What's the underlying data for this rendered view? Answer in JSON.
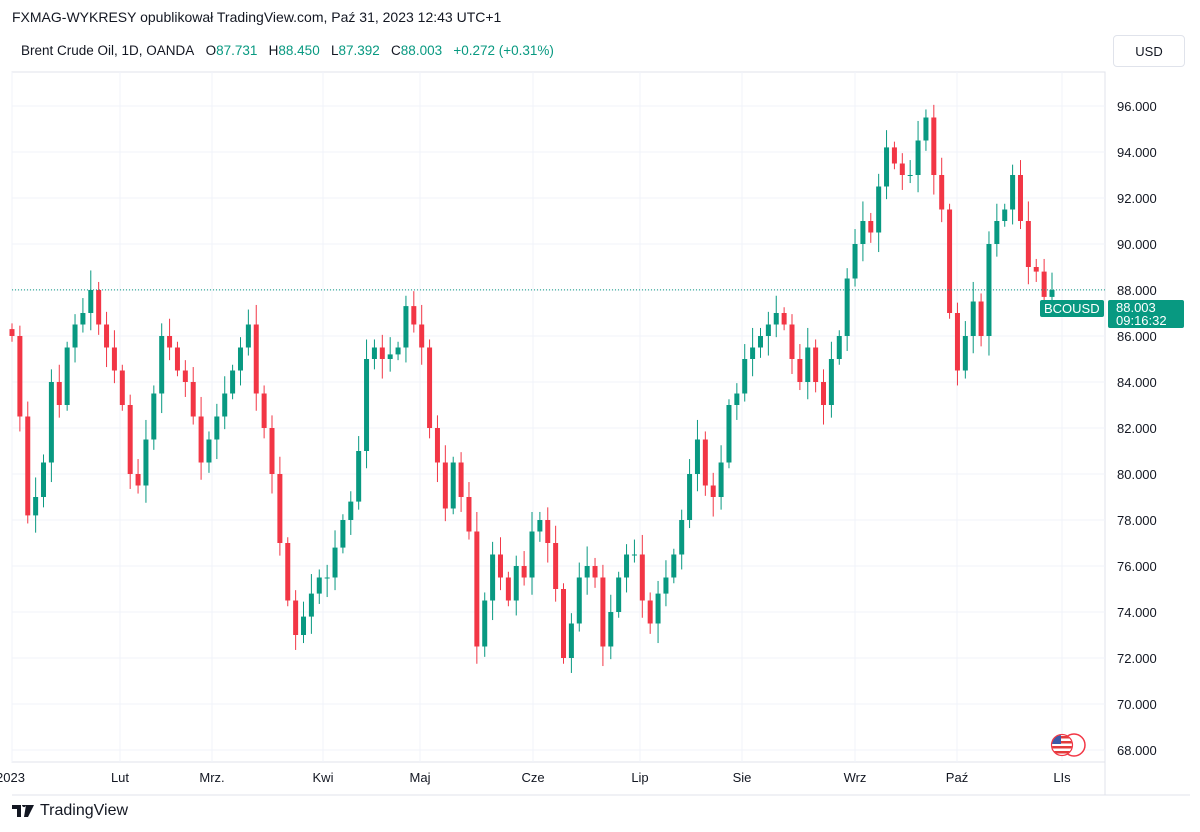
{
  "header": {
    "published": "FXMAG-WYKRESY opublikował TradingView.com, Paź 31, 2023 12:43 UTC+1",
    "symbol": "Brent Crude Oil, 1D, OANDA",
    "o_label": "O",
    "o": "87.731",
    "h_label": "H",
    "h": "88.450",
    "l_label": "L",
    "l": "87.392",
    "c_label": "C",
    "c": "88.003",
    "change": "+0.272 (+0.31%)",
    "currency": "USD"
  },
  "last_price": {
    "symbol": "BCOUSD",
    "price": "88.003",
    "countdown": "09:16:32"
  },
  "footer": {
    "brand": "TradingView"
  },
  "colors": {
    "up": "#089981",
    "down": "#f23645",
    "grid": "#f0f3fa",
    "text": "#131722"
  },
  "icons": {
    "flags": "us-flag-event-icon",
    "logo": "tradingview-logo-icon"
  },
  "chart_data": {
    "type": "candlestick",
    "title": "Brent Crude Oil, 1D, OANDA",
    "ylim": [
      67,
      97
    ],
    "yticks": [
      "96.000",
      "94.000",
      "92.000",
      "90.000",
      "88.000",
      "86.000",
      "84.000",
      "82.000",
      "80.000",
      "78.000",
      "76.000",
      "74.000",
      "72.000",
      "70.000",
      "68.000"
    ],
    "ytick_values": [
      96,
      94,
      92,
      90,
      88,
      86,
      84,
      82,
      80,
      78,
      76,
      74,
      72,
      70,
      68
    ],
    "xticks": [
      "2023",
      "Lut",
      "Mrz.",
      "Kwi",
      "Maj",
      "Cze",
      "Lip",
      "Sie",
      "Wrz",
      "Paź",
      "LIs"
    ],
    "last_value": 88.003,
    "grid": true,
    "closes": [
      86.0,
      82.5,
      78.2,
      79.0,
      80.5,
      84.0,
      83.0,
      85.5,
      86.5,
      87.0,
      88.0,
      86.5,
      85.5,
      84.5,
      83.0,
      80.0,
      79.5,
      81.5,
      83.5,
      86.0,
      85.5,
      84.5,
      84.0,
      82.5,
      80.5,
      81.5,
      82.5,
      83.5,
      84.5,
      85.5,
      86.5,
      83.5,
      82.0,
      80.0,
      77.0,
      74.5,
      73.0,
      73.8,
      74.8,
      75.5,
      75.5,
      76.8,
      78.0,
      78.8,
      81.0,
      85.0,
      85.5,
      85.0,
      85.2,
      85.5,
      87.3,
      86.5,
      85.5,
      82.0,
      80.5,
      78.5,
      80.5,
      79.0,
      77.5,
      72.5,
      74.5,
      76.5,
      75.5,
      74.5,
      76.0,
      75.5,
      77.5,
      78.0,
      77.0,
      75.0,
      72.0,
      73.5,
      75.5,
      76.0,
      75.5,
      72.5,
      74.0,
      75.5,
      76.5,
      76.5,
      74.5,
      73.5,
      74.8,
      75.5,
      76.5,
      78.0,
      80.0,
      81.5,
      79.5,
      79.0,
      80.5,
      83.0,
      83.5,
      85.0,
      85.5,
      86.0,
      86.5,
      87.0,
      86.5,
      85.0,
      84.0,
      85.5,
      84.0,
      83.0,
      85.0,
      86.0,
      88.5,
      90.0,
      91.0,
      90.5,
      92.5,
      94.2,
      93.5,
      93.0,
      93.0,
      94.5,
      95.5,
      93.0,
      91.5,
      87.0,
      84.5,
      86.0,
      87.5,
      86.0,
      90.0,
      91.0,
      91.5,
      93.0,
      91.0,
      89.0,
      88.8,
      87.7,
      88.003
    ]
  }
}
